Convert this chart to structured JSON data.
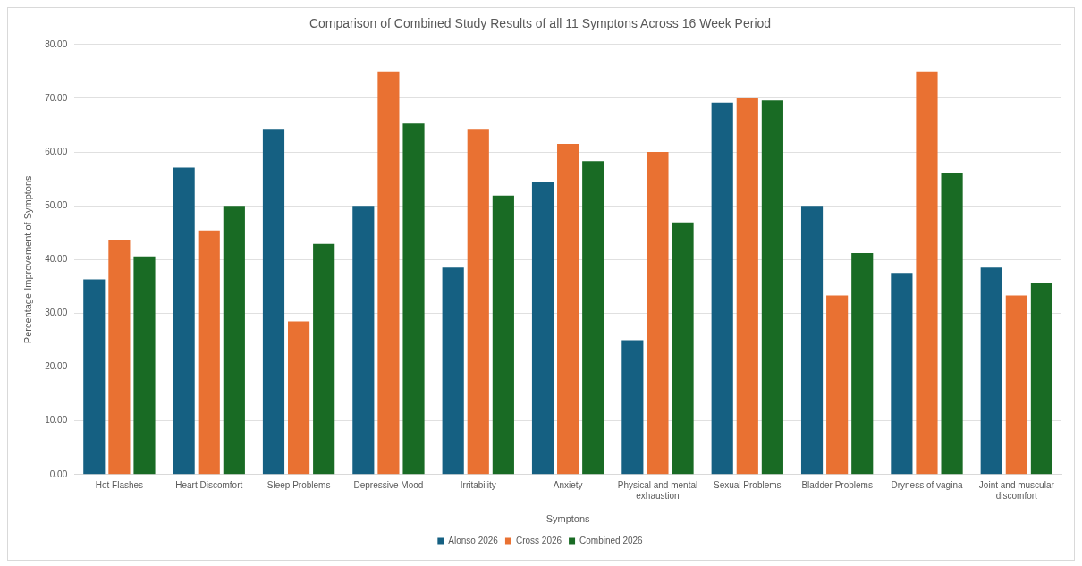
{
  "chart_data": {
    "type": "bar",
    "title": "Comparison of Combined Study Results of all 11 Symptons Across 16 Week Period",
    "xlabel": "Symptons",
    "ylabel": "Percentage Improvement of Symptons",
    "categories": [
      "Hot Flashes",
      "Heart Discomfort",
      "Sleep Problems",
      "Depressive Mood",
      "Irritability",
      "Anxiety",
      "Physical and mental exhaustion",
      "Sexual Problems",
      "Bladder Problems",
      "Dryness of vagina",
      "Joint and muscular discomfort"
    ],
    "series": [
      {
        "name": "Alonso 2026",
        "color": "#156082",
        "values": [
          36.3,
          57.1,
          64.3,
          50,
          38.5,
          54.5,
          25,
          69.2,
          50,
          37.5,
          38.5
        ]
      },
      {
        "name": "Cross 2026",
        "color": "#e97132",
        "values": [
          43.7,
          45.4,
          28.5,
          75,
          64.3,
          61.5,
          60,
          70,
          33.3,
          75,
          33.3
        ]
      },
      {
        "name": "Combined 2026",
        "color": "#196b24",
        "values": [
          40.6,
          50,
          42.9,
          65.3,
          51.9,
          58.3,
          46.9,
          69.6,
          41.2,
          56.2,
          35.7
        ]
      }
    ],
    "ylim": [
      0,
      80
    ],
    "yticks": [
      {
        "value": 0,
        "label": "0.00"
      },
      {
        "value": 10,
        "label": "10.00"
      },
      {
        "value": 20,
        "label": "20.00"
      },
      {
        "value": 30,
        "label": "30.00"
      },
      {
        "value": 40,
        "label": "40.00"
      },
      {
        "value": 50,
        "label": "50.00"
      },
      {
        "value": 60,
        "label": "60.00"
      },
      {
        "value": 70,
        "label": "70.00"
      },
      {
        "value": 80,
        "label": "80.00"
      }
    ],
    "grid": "y",
    "legend": "bottom"
  }
}
